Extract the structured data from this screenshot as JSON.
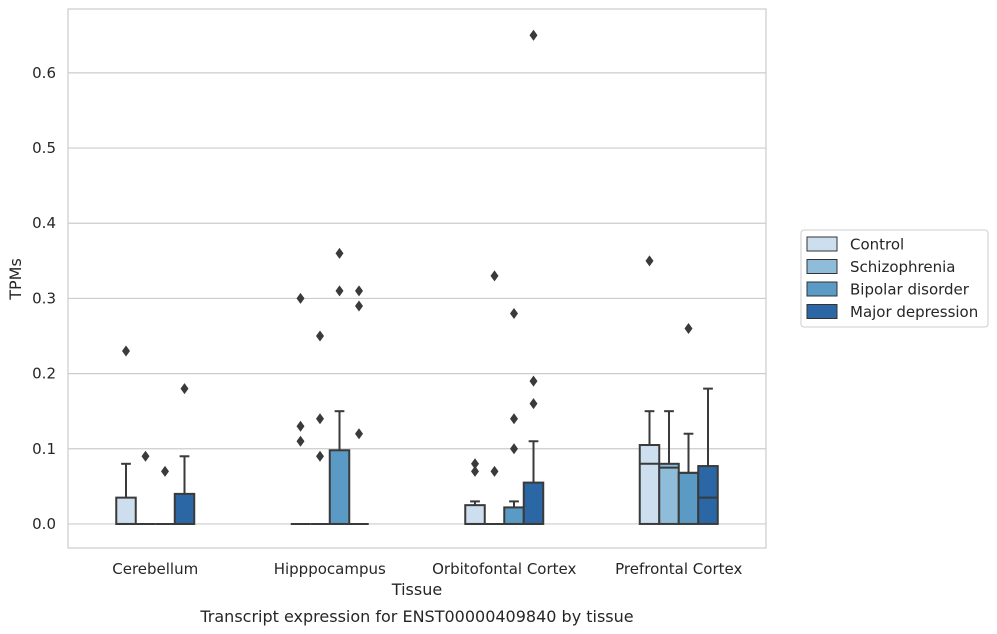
{
  "caption": "Transcript expression for ENST00000409840 by tissue",
  "chart_data": {
    "type": "box",
    "xlabel": "Tissue",
    "ylabel": "TPMs",
    "ylim": [
      -0.032,
      0.685
    ],
    "yticks": [
      0.0,
      0.1,
      0.2,
      0.3,
      0.4,
      0.5,
      0.6
    ],
    "ytick_labels": [
      "0.0",
      "0.1",
      "0.2",
      "0.3",
      "0.4",
      "0.5",
      "0.6"
    ],
    "grid": "horizontal",
    "legend_position": "right",
    "categories": [
      "Cerebellum",
      "Hipppocampus",
      "Orbitofontal Cortex",
      "Prefrontal Cortex"
    ],
    "series": [
      {
        "name": "Control",
        "color": "#cddeee",
        "boxes": [
          {
            "q1": 0.0,
            "median": 0.0,
            "q3": 0.035,
            "whisker_low": 0.0,
            "whisker_high": 0.08,
            "outliers": [
              0.23
            ]
          },
          {
            "q1": 0.0,
            "median": 0.0,
            "q3": 0.0,
            "whisker_low": 0.0,
            "whisker_high": 0.0,
            "outliers": [
              0.3,
              0.13,
              0.11
            ]
          },
          {
            "q1": 0.0,
            "median": 0.0,
            "q3": 0.025,
            "whisker_low": 0.0,
            "whisker_high": 0.03,
            "outliers": [
              0.08,
              0.07
            ]
          },
          {
            "q1": 0.0,
            "median": 0.08,
            "q3": 0.105,
            "whisker_low": 0.0,
            "whisker_high": 0.15,
            "outliers": [
              0.35
            ]
          }
        ]
      },
      {
        "name": "Schizophrenia",
        "color": "#8fbdd9",
        "boxes": [
          {
            "q1": 0.0,
            "median": 0.0,
            "q3": 0.0,
            "whisker_low": 0.0,
            "whisker_high": 0.0,
            "outliers": [
              0.09
            ]
          },
          {
            "q1": 0.0,
            "median": 0.0,
            "q3": 0.0,
            "whisker_low": 0.0,
            "whisker_high": 0.0,
            "outliers": [
              0.25,
              0.14,
              0.09
            ]
          },
          {
            "q1": 0.0,
            "median": 0.0,
            "q3": 0.0,
            "whisker_low": 0.0,
            "whisker_high": 0.0,
            "outliers": [
              0.33,
              0.07
            ]
          },
          {
            "q1": 0.0,
            "median": 0.075,
            "q3": 0.08,
            "whisker_low": 0.0,
            "whisker_high": 0.15,
            "outliers": []
          }
        ]
      },
      {
        "name": "Bipolar disorder",
        "color": "#5a9ac5",
        "boxes": [
          {
            "q1": 0.0,
            "median": 0.0,
            "q3": 0.0,
            "whisker_low": 0.0,
            "whisker_high": 0.0,
            "outliers": [
              0.07
            ]
          },
          {
            "q1": 0.0,
            "median": 0.0,
            "q3": 0.098,
            "whisker_low": 0.0,
            "whisker_high": 0.15,
            "outliers": [
              0.36,
              0.31
            ]
          },
          {
            "q1": 0.0,
            "median": 0.0,
            "q3": 0.022,
            "whisker_low": 0.0,
            "whisker_high": 0.03,
            "outliers": [
              0.28,
              0.14,
              0.1
            ]
          },
          {
            "q1": 0.0,
            "median": 0.068,
            "q3": 0.068,
            "whisker_low": 0.0,
            "whisker_high": 0.12,
            "outliers": [
              0.26
            ]
          }
        ]
      },
      {
        "name": "Major depression",
        "color": "#2a67a4",
        "boxes": [
          {
            "q1": 0.0,
            "median": 0.0,
            "q3": 0.04,
            "whisker_low": 0.0,
            "whisker_high": 0.09,
            "outliers": [
              0.18
            ]
          },
          {
            "q1": 0.0,
            "median": 0.0,
            "q3": 0.0,
            "whisker_low": 0.0,
            "whisker_high": 0.0,
            "outliers": [
              0.31,
              0.29,
              0.12
            ]
          },
          {
            "q1": 0.0,
            "median": 0.0,
            "q3": 0.055,
            "whisker_low": 0.0,
            "whisker_high": 0.11,
            "outliers": [
              0.65,
              0.19,
              0.16
            ]
          },
          {
            "q1": 0.0,
            "median": 0.035,
            "q3": 0.077,
            "whisker_low": 0.0,
            "whisker_high": 0.18,
            "outliers": []
          }
        ]
      }
    ]
  }
}
